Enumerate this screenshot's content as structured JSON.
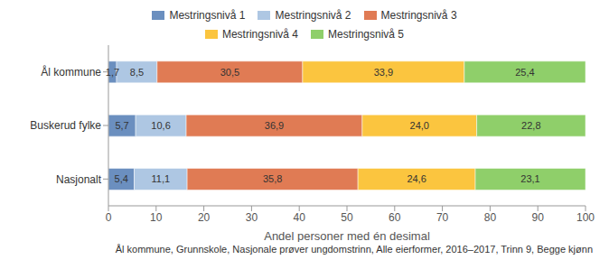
{
  "chart_data": {
    "type": "bar",
    "orientation": "horizontal",
    "stacked": true,
    "data_labels": true,
    "legend": "top",
    "grid": false,
    "categories": [
      "Ål kommune",
      "Buskerud fylke",
      "Nasjonalt"
    ],
    "series": [
      {
        "name": "Mestringsnivå 1",
        "color": "#6b8fbf",
        "values": [
          1.7,
          5.7,
          5.4
        ],
        "value_labels": [
          "1,7",
          "5,7",
          "5,4"
        ]
      },
      {
        "name": "Mestringsnivå 2",
        "color": "#aec7e3",
        "values": [
          8.5,
          10.6,
          11.1
        ],
        "value_labels": [
          "8,5",
          "10,6",
          "11,1"
        ]
      },
      {
        "name": "Mestringsnivå 3",
        "color": "#e07b54",
        "values": [
          30.5,
          36.9,
          35.8
        ],
        "value_labels": [
          "30,5",
          "36,9",
          "35,8"
        ]
      },
      {
        "name": "Mestringsnivå 4",
        "color": "#fbc53f",
        "values": [
          33.9,
          24.0,
          24.6
        ],
        "value_labels": [
          "33,9",
          "24,0",
          "24,6"
        ]
      },
      {
        "name": "Mestringsnivå 5",
        "color": "#8fcf6a",
        "values": [
          25.4,
          22.8,
          23.1
        ],
        "value_labels": [
          "25,4",
          "22,8",
          "23,1"
        ]
      }
    ],
    "xlim": [
      0,
      100
    ],
    "xticks": [
      0,
      10,
      20,
      30,
      40,
      50,
      60,
      70,
      80,
      90,
      100
    ],
    "x_label": "Andel personer med én desimal",
    "caption": "Ål kommune, Grunnskole, Nasjonale prøver ungdomstrinn, Alle eierformer, 2016–2017, Trinn 9, Begge kjønn"
  }
}
